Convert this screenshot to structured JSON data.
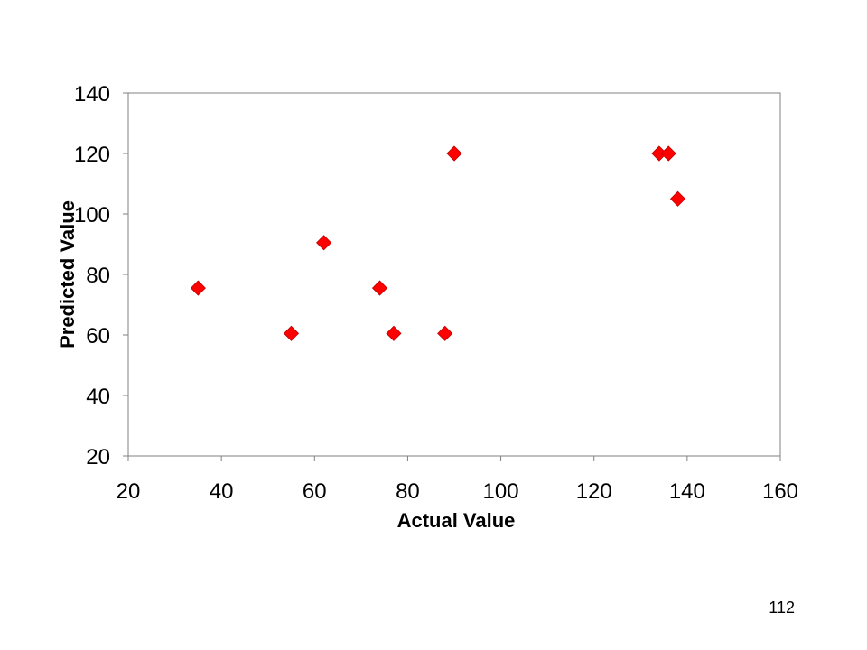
{
  "slide": {
    "page_number": "112"
  },
  "chart_data": {
    "type": "scatter",
    "xlabel": "Actual Value",
    "ylabel": "Predicted Value",
    "xlim": [
      20,
      160
    ],
    "ylim": [
      20,
      140
    ],
    "x_ticks": [
      "20",
      "40",
      "60",
      "80",
      "100",
      "120",
      "140",
      "160"
    ],
    "y_ticks": [
      "20",
      "40",
      "60",
      "80",
      "100",
      "120",
      "140"
    ],
    "grid": false,
    "legend": "none",
    "marker": "diamond",
    "marker_color": "#ff0000",
    "series": [
      {
        "points": [
          {
            "x": 35,
            "y": 75.5
          },
          {
            "x": 55,
            "y": 60.5
          },
          {
            "x": 62,
            "y": 90.5
          },
          {
            "x": 74,
            "y": 75.5
          },
          {
            "x": 77,
            "y": 60.5
          },
          {
            "x": 88,
            "y": 60.5
          },
          {
            "x": 90,
            "y": 120
          },
          {
            "x": 134,
            "y": 120
          },
          {
            "x": 136,
            "y": 120
          },
          {
            "x": 138,
            "y": 105
          }
        ]
      }
    ]
  }
}
